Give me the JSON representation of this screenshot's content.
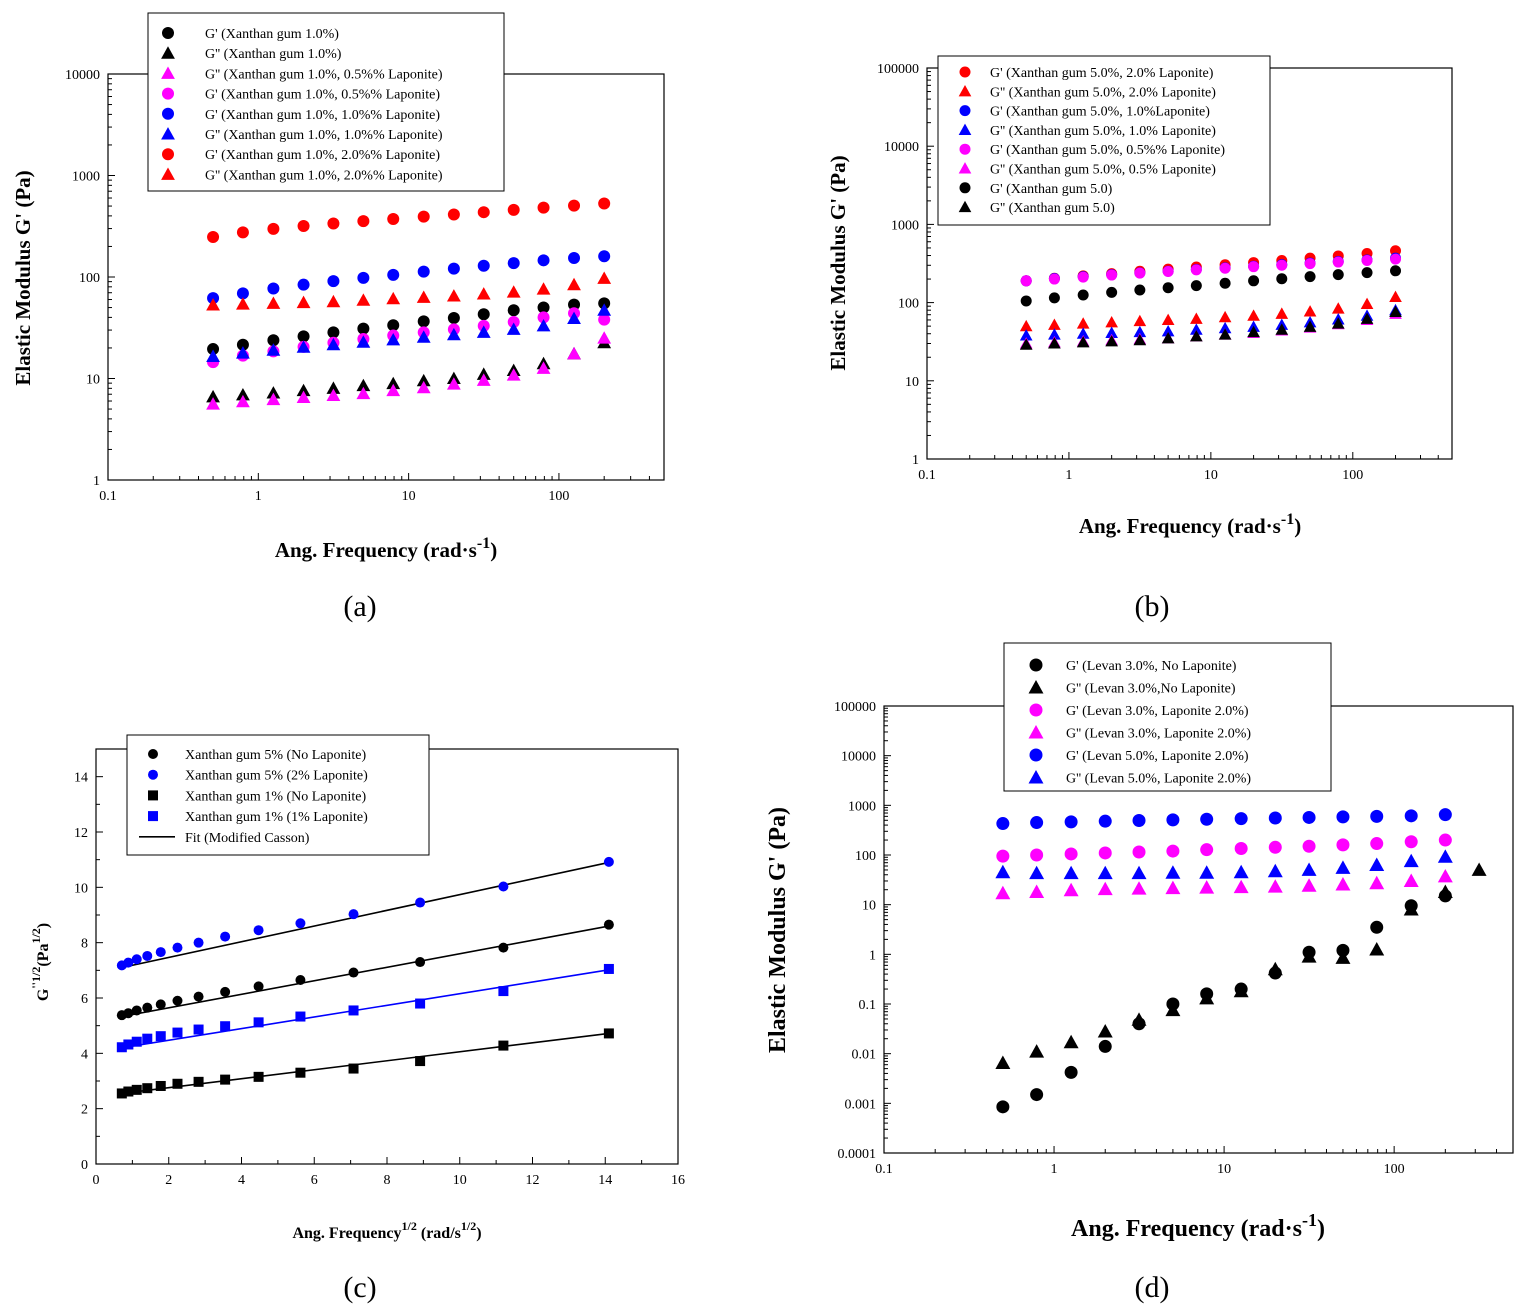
{
  "chart_data": [
    {
      "id": "a",
      "type": "scatter",
      "panel_label": "(a)",
      "xscale": "log",
      "yscale": "log",
      "xlim": [
        0.1,
        500
      ],
      "ylim": [
        1,
        10000
      ],
      "xticks": [
        "0.1",
        "1",
        "10",
        "100"
      ],
      "yticks": [
        "1",
        "10",
        "100",
        "1000",
        "10000"
      ],
      "xlabel": "Ang. Frequency (rad·s",
      "xlabel_sup": "-1",
      "xlabel_end": ")",
      "ylabel": "Elastic Modulus G' (Pa)",
      "legend_position": "top-left",
      "x": [
        0.5,
        0.79,
        1.26,
        2,
        3.16,
        5,
        7.9,
        12.6,
        20,
        31.6,
        50,
        79,
        126,
        200
      ],
      "series": [
        {
          "name": "G' (Xanthan gum 1.0%)",
          "marker": "circle",
          "color": "#000000",
          "values": [
            19.5,
            21.5,
            23.8,
            26,
            28.5,
            31,
            33.5,
            36.5,
            39.5,
            43,
            47,
            50,
            53.5,
            55
          ]
        },
        {
          "name": "G'' (Xanthan gum 1.0%)",
          "marker": "triangle",
          "color": "#000000",
          "values": [
            6.6,
            6.9,
            7.2,
            7.6,
            8.0,
            8.5,
            8.9,
            9.5,
            10,
            11,
            12,
            14,
            17.5,
            22.5
          ]
        },
        {
          "name": "G'' (Xanthan gum 1.0%, 0.5%% Laponite)",
          "marker": "triangle",
          "color": "#ff00ff",
          "values": [
            5.6,
            5.9,
            6.2,
            6.5,
            6.8,
            7.1,
            7.6,
            8.1,
            8.8,
            9.6,
            10.8,
            12.6,
            17.5,
            25
          ]
        },
        {
          "name": "G' (Xanthan gum 1.0%, 0.5%% Laponite)",
          "marker": "circle",
          "color": "#ff00ff",
          "values": [
            14.5,
            16.8,
            18.5,
            20.5,
            22.5,
            24.5,
            26.5,
            28.5,
            30.5,
            33,
            36,
            40,
            44,
            38
          ]
        },
        {
          "name": "G' (Xanthan gum 1.0%, 1.0%% Laponite)",
          "marker": "circle",
          "color": "#0000ff",
          "values": [
            62,
            69,
            77,
            84,
            91,
            98,
            105,
            113,
            121,
            129,
            137,
            146,
            154,
            160
          ]
        },
        {
          "name": "G'' (Xanthan gum 1.0%, 1.0%% Laponite)",
          "marker": "triangle",
          "color": "#0000ff",
          "values": [
            16.5,
            17.8,
            19,
            20.3,
            21.5,
            22.8,
            24,
            25.5,
            27,
            28.5,
            30.5,
            33,
            39,
            47
          ]
        },
        {
          "name": "G' (Xanthan gum 1.0%, 2.0%% Laponite)",
          "marker": "circle",
          "color": "#ff0000",
          "values": [
            248,
            275,
            298,
            318,
            337,
            355,
            373,
            393,
            413,
            435,
            458,
            482,
            505,
            530
          ]
        },
        {
          "name": "G'' (Xanthan gum 1.0%, 2.0%% Laponite)",
          "marker": "triangle",
          "color": "#ff0000",
          "values": [
            53,
            54,
            55,
            56,
            57,
            59,
            61,
            63,
            65,
            68,
            71,
            76,
            84,
            97
          ]
        }
      ]
    },
    {
      "id": "b",
      "type": "scatter",
      "panel_label": "(b)",
      "xscale": "log",
      "yscale": "log",
      "xlim": [
        0.1,
        500
      ],
      "ylim": [
        1,
        100000
      ],
      "xticks": [
        "0.1",
        "1",
        "10",
        "100"
      ],
      "yticks": [
        "1",
        "10",
        "100",
        "1000",
        "10000",
        "100000"
      ],
      "xlabel": "Ang. Frequency (rad·s",
      "xlabel_sup": "-1",
      "xlabel_end": ")",
      "ylabel": "Elastic Modulus G' (Pa)",
      "legend_position": "top-left",
      "x": [
        0.5,
        0.79,
        1.26,
        2,
        3.16,
        5,
        7.9,
        12.6,
        20,
        31.6,
        50,
        79,
        126,
        200
      ],
      "series": [
        {
          "name": "G' (Xanthan gum 5.0%, 2.0% Laponite)",
          "marker": "circle",
          "color": "#ff0000",
          "values": [
            190,
            205,
            220,
            235,
            252,
            268,
            285,
            305,
            325,
            345,
            370,
            395,
            425,
            460
          ]
        },
        {
          "name": "G'' (Xanthan gum 5.0%, 2.0% Laponite)",
          "marker": "triangle",
          "color": "#ff0000",
          "values": [
            50,
            52,
            54,
            56,
            58,
            60,
            62,
            65,
            68,
            72,
            77,
            84,
            96,
            118
          ]
        },
        {
          "name": "G' (Xanthan gum 5.0%, 1.0%Laponite)",
          "marker": "circle",
          "color": "#0000ff",
          "values": [
            190,
            203,
            215,
            228,
            240,
            252,
            265,
            278,
            292,
            306,
            320,
            335,
            350,
            370
          ]
        },
        {
          "name": "G'' (Xanthan gum 5.0%, 1.0% Laponite)",
          "marker": "triangle",
          "color": "#0000ff",
          "values": [
            38,
            39,
            40,
            41,
            42,
            43,
            45,
            47,
            49,
            52,
            56,
            61,
            68,
            80
          ]
        },
        {
          "name": "G' (Xanthan gum 5.0%, 0.5%% Laponite)",
          "marker": "circle",
          "color": "#ff00ff",
          "values": [
            190,
            200,
            212,
            225,
            238,
            250,
            262,
            275,
            288,
            300,
            315,
            330,
            345,
            360
          ]
        },
        {
          "name": "G'' (Xanthan gum 5.0%, 0.5% Laponite)",
          "marker": "triangle",
          "color": "#ff00ff",
          "values": [
            30,
            31,
            32,
            33,
            34,
            35,
            37,
            39,
            41,
            44,
            48,
            53,
            60,
            72
          ]
        },
        {
          "name": "G' (Xanthan gum 5.0)",
          "marker": "circle",
          "color": "#000000",
          "values": [
            105,
            115,
            125,
            135,
            145,
            155,
            165,
            177,
            190,
            202,
            215,
            228,
            242,
            255
          ]
        },
        {
          "name": "G'' (Xanthan gum 5.0)",
          "marker": "triangle",
          "color": "#000000",
          "values": [
            29,
            30,
            31,
            32,
            33,
            35,
            37,
            39,
            42,
            45,
            49,
            54,
            62,
            76
          ]
        }
      ]
    },
    {
      "id": "c",
      "type": "scatter",
      "panel_label": "(c)",
      "xscale": "linear",
      "yscale": "linear",
      "xlim": [
        0,
        16
      ],
      "ylim": [
        0,
        15
      ],
      "xticks": [
        "0",
        "2",
        "4",
        "6",
        "8",
        "10",
        "12",
        "14",
        "16"
      ],
      "yticks": [
        "0",
        "2",
        "4",
        "6",
        "8",
        "10",
        "12",
        "14"
      ],
      "xlabel": "Ang. Frequency",
      "xlabel_sup1": "1/2",
      "xlabel_mid": " (rad/s",
      "xlabel_sup2": "1/2",
      "xlabel_end": ")",
      "ylabel": "G",
      "ylabel_sup1": "''1/2",
      "ylabel_mid": "(Pa",
      "ylabel_sup2": "1/2",
      "ylabel_end": ")",
      "legend_position": "top-left",
      "x": [
        0.71,
        0.89,
        1.12,
        1.41,
        1.78,
        2.24,
        2.82,
        3.55,
        4.47,
        5.62,
        7.08,
        8.91,
        11.2,
        14.1
      ],
      "series": [
        {
          "name": "Xanthan gum 5% (No Laponite)",
          "marker": "circle",
          "color": "#000000",
          "values": [
            5.38,
            5.45,
            5.55,
            5.65,
            5.77,
            5.9,
            6.05,
            6.22,
            6.42,
            6.65,
            6.92,
            7.3,
            7.82,
            8.65
          ],
          "fit": [
            5.33,
            8.6
          ]
        },
        {
          "name": "Xanthan gum 5% (2% Laponite)",
          "marker": "circle",
          "color": "#0000ff",
          "values": [
            7.18,
            7.28,
            7.4,
            7.52,
            7.66,
            7.82,
            8.0,
            8.22,
            8.45,
            8.7,
            9.03,
            9.45,
            10.03,
            10.92
          ],
          "fit": [
            7.1,
            10.9
          ]
        },
        {
          "name": "Xanthan gum 1% (No Laponite)",
          "marker": "square",
          "color": "#000000",
          "values": [
            2.55,
            2.62,
            2.68,
            2.74,
            2.82,
            2.9,
            2.97,
            3.05,
            3.15,
            3.3,
            3.45,
            3.72,
            4.28,
            4.72
          ],
          "fit": [
            2.55,
            4.72
          ]
        },
        {
          "name": "Xanthan gum 1% (1% Laponite)",
          "marker": "square",
          "color": "#0000ff",
          "values": [
            4.22,
            4.32,
            4.42,
            4.53,
            4.62,
            4.75,
            4.86,
            4.98,
            5.12,
            5.33,
            5.55,
            5.8,
            6.25,
            7.05
          ],
          "fit": [
            4.2,
            7.02
          ],
          "fit_color": "#0000ff"
        }
      ],
      "fit_legend": "Fit (Modified Casson)"
    },
    {
      "id": "d",
      "type": "scatter",
      "panel_label": "(d)",
      "xscale": "log",
      "yscale": "log",
      "xlim": [
        0.1,
        500
      ],
      "ylim": [
        0.0001,
        100000
      ],
      "xticks": [
        "0.1",
        "1",
        "10",
        "100"
      ],
      "yticks": [
        "0.0001",
        "0.001",
        "0.01",
        "0.1",
        "1",
        "10",
        "100",
        "1000",
        "10000",
        "100000"
      ],
      "xlabel": "Ang. Frequency (rad·s",
      "xlabel_sup": "-1",
      "xlabel_end": ")",
      "ylabel": "Elastic Modulus G' (Pa)",
      "legend_position": "top-center",
      "x": [
        0.5,
        0.79,
        1.26,
        2,
        3.16,
        5,
        7.9,
        12.6,
        20,
        31.6,
        50,
        79,
        126,
        200
      ],
      "series": [
        {
          "name": "G' (Levan 3.0%, No Laponite)",
          "marker": "circle",
          "color": "#000000",
          "values": [
            0.00085,
            0.0015,
            0.0042,
            0.014,
            0.04,
            0.1,
            0.16,
            0.2,
            0.42,
            1.1,
            1.2,
            3.5,
            9.5,
            15
          ]
        },
        {
          "name": "G'' (Levan 3.0%,No  Laponite)",
          "marker": "triangle",
          "color": "#000000",
          "values": [
            0.0065,
            0.011,
            0.017,
            0.028,
            0.048,
            0.075,
            0.13,
            0.18,
            0.5,
            0.9,
            0.85,
            1.25,
            8,
            18
          ],
          "extra_x": [
            316
          ],
          "extra_values": [
            50
          ]
        },
        {
          "name": "G' (Levan 3.0%, Laponite 2.0%)",
          "marker": "circle",
          "color": "#ff00ff",
          "values": [
            95,
            100,
            105,
            110,
            115,
            120,
            128,
            135,
            143,
            150,
            160,
            170,
            185,
            200
          ]
        },
        {
          "name": "G'' (Levan 3.0%, Laponite 2.0%)",
          "marker": "triangle",
          "color": "#ff00ff",
          "values": [
            17,
            18,
            19.5,
            20.5,
            21,
            21.5,
            22,
            22.5,
            23,
            24,
            25.5,
            27,
            30,
            37
          ]
        },
        {
          "name": "G' (Levan 5.0%, Laponite 2.0%)",
          "marker": "circle",
          "color": "#0000ff",
          "values": [
            430,
            450,
            465,
            480,
            495,
            510,
            525,
            540,
            555,
            570,
            585,
            600,
            615,
            650
          ]
        },
        {
          "name": "G'' (Levan 5.0%, Laponite 2.0%)",
          "marker": "triangle",
          "color": "#0000ff",
          "values": [
            45,
            43,
            43,
            43,
            43,
            44,
            44,
            45,
            47,
            50,
            55,
            63,
            75,
            92
          ]
        }
      ]
    }
  ]
}
